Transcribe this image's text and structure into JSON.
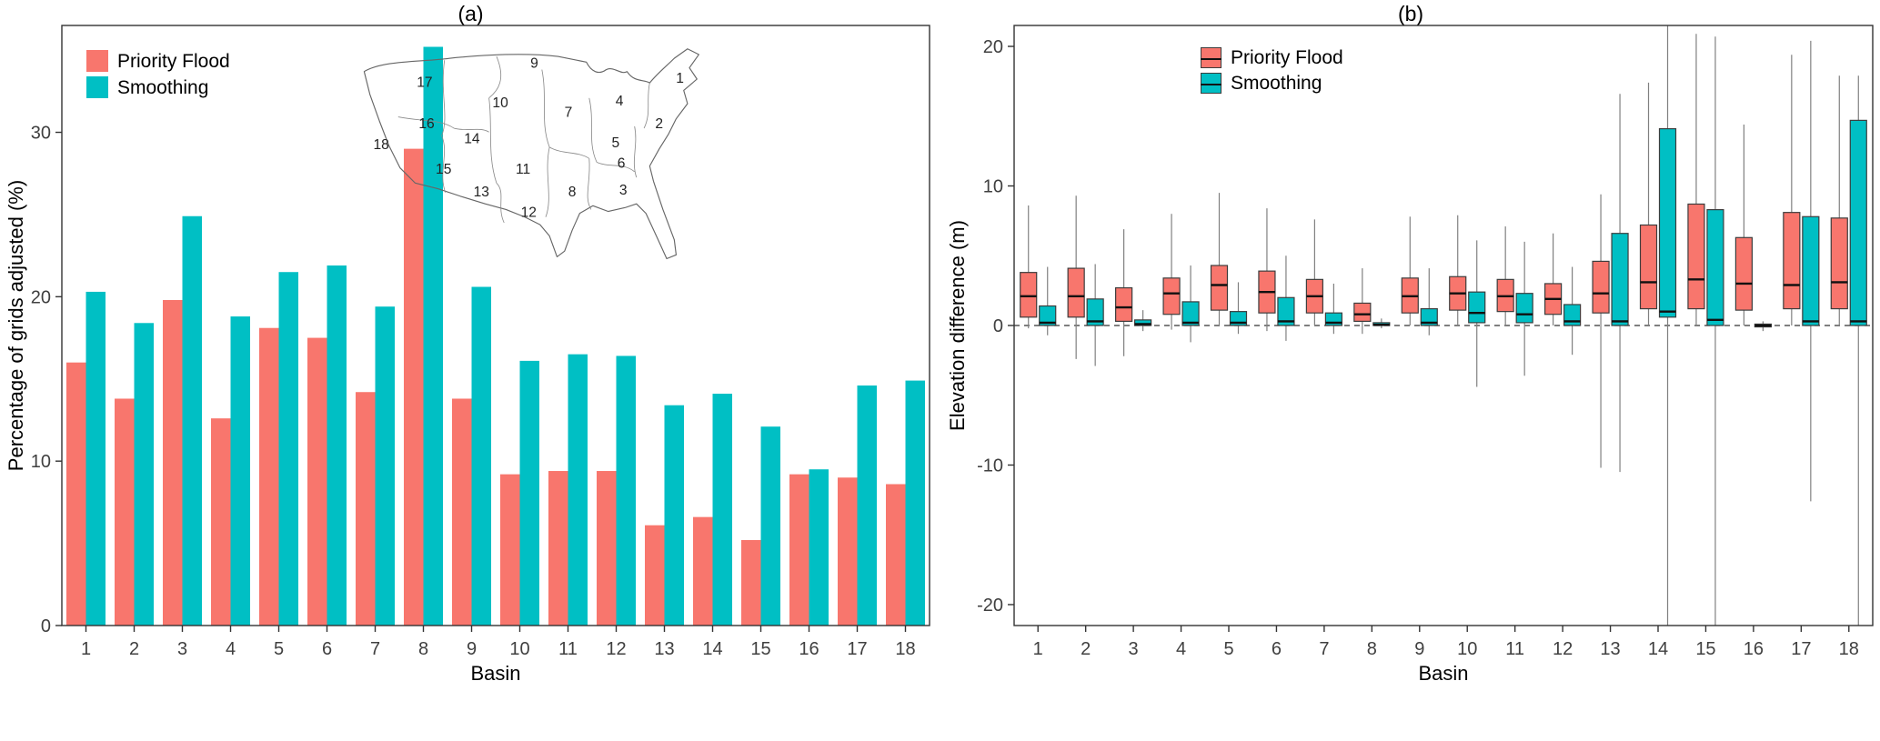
{
  "colors": {
    "priority_flood": "#F8766D",
    "smoothing": "#00BFC4",
    "axis": "#333333",
    "tick_text": "#404040",
    "whisker": "#808080",
    "box_border": "#3d3d3d",
    "median": "#111111",
    "zero_line": "#333333",
    "map_outline": "#666666",
    "map_inner": "#8a8a8a"
  },
  "chart_data": [
    {
      "type": "bar",
      "title": "(a)",
      "xlabel": "Basin",
      "ylabel": "Percentage of grids adjusted (%)",
      "categories": [
        "1",
        "2",
        "3",
        "4",
        "5",
        "6",
        "7",
        "8",
        "9",
        "10",
        "11",
        "12",
        "13",
        "14",
        "15",
        "16",
        "17",
        "18"
      ],
      "yticks": [
        0,
        10,
        20,
        30
      ],
      "ylim": [
        0,
        36.5
      ],
      "grid": false,
      "legend_position": "top-left-inside",
      "series": [
        {
          "name": "Priority Flood",
          "key": "priority_flood",
          "color": "#F8766D",
          "values": [
            16.0,
            13.8,
            19.8,
            12.6,
            18.1,
            17.5,
            14.2,
            29.0,
            13.8,
            9.2,
            9.4,
            9.4,
            6.1,
            6.6,
            5.2,
            9.2,
            9.0,
            8.6
          ]
        },
        {
          "name": "Smoothing",
          "key": "smoothing",
          "color": "#00BFC4",
          "values": [
            20.3,
            18.4,
            24.9,
            18.8,
            21.5,
            21.9,
            19.4,
            35.2,
            20.6,
            16.1,
            16.5,
            16.4,
            13.4,
            14.1,
            12.1,
            9.5,
            14.6,
            14.9
          ]
        }
      ],
      "inset_map": {
        "description": "Outline map of contiguous US river basins numbered 1-18",
        "labels": [
          {
            "n": "1",
            "x": 344,
            "y": 44
          },
          {
            "n": "2",
            "x": 322,
            "y": 92
          },
          {
            "n": "3",
            "x": 284,
            "y": 162
          },
          {
            "n": "4",
            "x": 280,
            "y": 68
          },
          {
            "n": "5",
            "x": 276,
            "y": 112
          },
          {
            "n": "6",
            "x": 282,
            "y": 134
          },
          {
            "n": "7",
            "x": 226,
            "y": 80
          },
          {
            "n": "8",
            "x": 230,
            "y": 164
          },
          {
            "n": "9",
            "x": 190,
            "y": 28
          },
          {
            "n": "10",
            "x": 154,
            "y": 70
          },
          {
            "n": "11",
            "x": 178,
            "y": 140
          },
          {
            "n": "12",
            "x": 184,
            "y": 186
          },
          {
            "n": "13",
            "x": 134,
            "y": 164
          },
          {
            "n": "14",
            "x": 124,
            "y": 108
          },
          {
            "n": "15",
            "x": 94,
            "y": 140
          },
          {
            "n": "16",
            "x": 76,
            "y": 92
          },
          {
            "n": "17",
            "x": 74,
            "y": 48
          },
          {
            "n": "18",
            "x": 28,
            "y": 114
          }
        ]
      }
    },
    {
      "type": "boxplot",
      "title": "(b)",
      "xlabel": "Basin",
      "ylabel": "Elevation difference (m)",
      "categories": [
        "1",
        "2",
        "3",
        "4",
        "5",
        "6",
        "7",
        "8",
        "9",
        "10",
        "11",
        "12",
        "13",
        "14",
        "15",
        "16",
        "17",
        "18"
      ],
      "yticks": [
        -20,
        -10,
        0,
        10,
        20
      ],
      "ylim": [
        -21.5,
        21.5
      ],
      "zero_line": 0,
      "grid": false,
      "legend_position": "top-left-inside",
      "box_stats_order": [
        "whisker_low",
        "q1",
        "median",
        "q3",
        "whisker_high"
      ],
      "series": [
        {
          "name": "Priority Flood",
          "key": "priority_flood",
          "color": "#F8766D",
          "boxes": [
            [
              -0.2,
              0.6,
              2.1,
              3.8,
              8.6
            ],
            [
              -2.4,
              0.6,
              2.1,
              4.1,
              9.3
            ],
            [
              -2.2,
              0.3,
              1.3,
              2.7,
              6.9
            ],
            [
              -0.3,
              0.8,
              2.3,
              3.4,
              8.0
            ],
            [
              0.0,
              1.1,
              2.9,
              4.3,
              9.5
            ],
            [
              -0.4,
              0.9,
              2.4,
              3.9,
              8.4
            ],
            [
              0.0,
              0.9,
              2.1,
              3.3,
              7.6
            ],
            [
              -0.6,
              0.3,
              0.8,
              1.6,
              4.1
            ],
            [
              0.0,
              0.9,
              2.1,
              3.4,
              7.8
            ],
            [
              0.0,
              1.1,
              2.3,
              3.5,
              7.9
            ],
            [
              0.0,
              1.0,
              2.1,
              3.3,
              7.1
            ],
            [
              0.0,
              0.8,
              1.9,
              3.0,
              6.6
            ],
            [
              -10.2,
              0.9,
              2.3,
              4.6,
              9.4
            ],
            [
              0.0,
              1.2,
              3.1,
              7.2,
              17.4
            ],
            [
              0.0,
              1.2,
              3.3,
              8.7,
              20.9
            ],
            [
              0.0,
              1.1,
              3.0,
              6.3,
              14.4
            ],
            [
              0.0,
              1.2,
              2.9,
              8.1,
              19.4
            ],
            [
              0.0,
              1.2,
              3.1,
              7.7,
              17.9
            ]
          ]
        },
        {
          "name": "Smoothing",
          "key": "smoothing",
          "color": "#00BFC4",
          "boxes": [
            [
              -0.7,
              0.0,
              0.2,
              1.4,
              4.2
            ],
            [
              -2.9,
              0.0,
              0.3,
              1.9,
              4.4
            ],
            [
              -0.4,
              0.0,
              0.1,
              0.4,
              1.1
            ],
            [
              -1.2,
              0.0,
              0.2,
              1.7,
              4.3
            ],
            [
              -0.6,
              0.0,
              0.2,
              1.0,
              3.1
            ],
            [
              -1.1,
              0.0,
              0.3,
              2.0,
              5.0
            ],
            [
              -0.6,
              0.0,
              0.2,
              0.9,
              3.0
            ],
            [
              -0.2,
              0.0,
              0.05,
              0.2,
              0.5
            ],
            [
              -0.7,
              0.0,
              0.2,
              1.2,
              4.1
            ],
            [
              -4.4,
              0.2,
              0.9,
              2.4,
              6.1
            ],
            [
              -3.6,
              0.2,
              0.8,
              2.3,
              6.0
            ],
            [
              -2.1,
              0.0,
              0.3,
              1.5,
              4.2
            ],
            [
              -10.5,
              0.0,
              0.3,
              6.6,
              16.6
            ],
            [
              -21.5,
              0.6,
              1.0,
              14.1,
              21.5
            ],
            [
              -21.5,
              0.0,
              0.4,
              8.3,
              20.7
            ],
            [
              -0.4,
              -0.1,
              0.0,
              0.1,
              0.3
            ],
            [
              -12.6,
              0.0,
              0.3,
              7.8,
              20.4
            ],
            [
              -21.5,
              0.0,
              0.3,
              14.7,
              17.9
            ]
          ]
        }
      ]
    }
  ]
}
